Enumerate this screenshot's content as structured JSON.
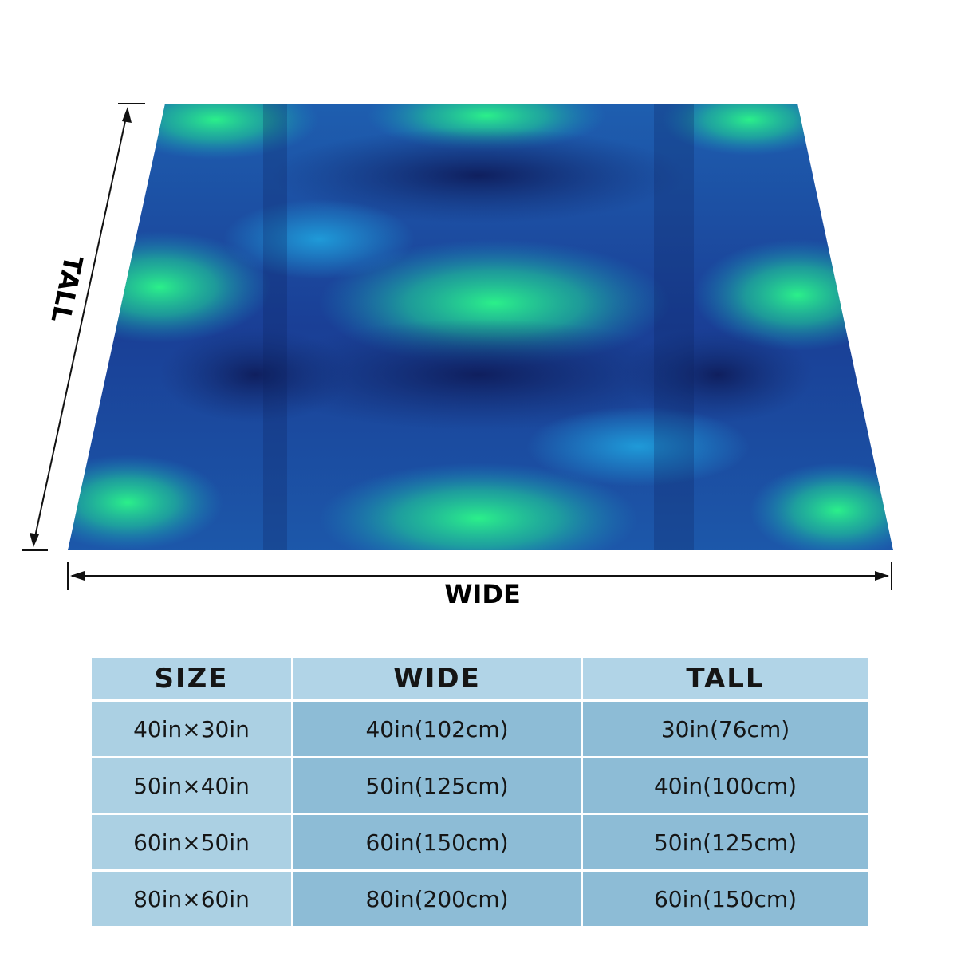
{
  "diagram": {
    "tall_label": "TALL",
    "wide_label": "WIDE"
  },
  "table": {
    "header": [
      "SIZE",
      "WIDE",
      "TALL"
    ],
    "rows": [
      [
        "40in×30in",
        "40in(102cm)",
        "30in(76cm)"
      ],
      [
        "50in×40in",
        "50in(125cm)",
        "40in(100cm)"
      ],
      [
        "60in×50in",
        "60in(150cm)",
        "50in(125cm)"
      ],
      [
        "80in×60in",
        "80in(200cm)",
        "60in(150cm)"
      ]
    ]
  }
}
